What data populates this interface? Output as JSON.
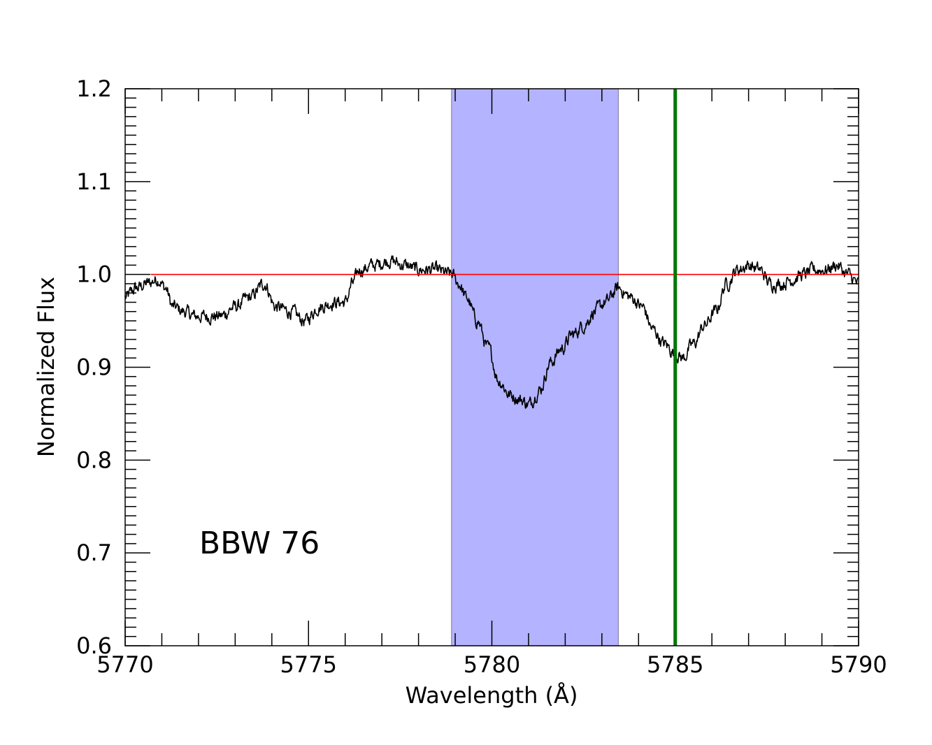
{
  "chart_data": {
    "type": "line",
    "title": "",
    "xlabel": "Wavelength (Å)",
    "ylabel": "Normalized Flux",
    "annotation": "BBW 76",
    "xlim": [
      5770,
      5790
    ],
    "ylim": [
      0.6,
      1.2
    ],
    "x_ticks": [
      5770,
      5775,
      5780,
      5785,
      5790
    ],
    "x_tick_labels": [
      "5770",
      "5775",
      "5780",
      "5785",
      "5790"
    ],
    "y_ticks": [
      0.6,
      0.7,
      0.8,
      0.9,
      1.0,
      1.1,
      1.2
    ],
    "y_tick_labels": [
      "0.6",
      "0.7",
      "0.8",
      "0.9",
      "1.0",
      "1.1",
      "1.2"
    ],
    "grid": false,
    "continuum": {
      "y": 1.0,
      "x_start": 5770.7,
      "x_end": 5790,
      "color": "#ff0000"
    },
    "shaded_region": {
      "x_start": 5778.9,
      "x_end": 5783.45,
      "color": "#b3b3ff"
    },
    "marker_line": {
      "x": 5785.0,
      "color": "#007700"
    },
    "series": [
      {
        "color": "#000000",
        "x": [
          5770.0,
          5770.3,
          5770.6,
          5770.9,
          5771.1,
          5771.3,
          5771.6,
          5771.9,
          5772.2,
          5772.6,
          5773.0,
          5773.4,
          5773.8,
          5774.1,
          5774.5,
          5774.9,
          5775.3,
          5775.7,
          5776.0,
          5776.2,
          5776.4,
          5776.8,
          5777.2,
          5777.6,
          5778.0,
          5778.4,
          5778.9,
          5779.1,
          5779.3,
          5779.6,
          5779.9,
          5780.2,
          5780.5,
          5780.8,
          5781.0,
          5781.3,
          5781.6,
          5781.9,
          5782.2,
          5782.5,
          5782.8,
          5783.1,
          5783.45,
          5783.8,
          5784.1,
          5784.4,
          5784.7,
          5785.0,
          5785.2,
          5785.5,
          5785.8,
          5786.1,
          5786.4,
          5786.7,
          5787.0,
          5787.3,
          5787.6,
          5787.9,
          5788.2,
          5788.5,
          5788.8,
          5789.1,
          5789.4,
          5789.7,
          5790.0
        ],
        "y": [
          0.975,
          0.985,
          0.99,
          0.995,
          0.985,
          0.965,
          0.96,
          0.955,
          0.955,
          0.955,
          0.965,
          0.975,
          0.99,
          0.965,
          0.96,
          0.95,
          0.965,
          0.97,
          0.97,
          0.99,
          1.005,
          1.01,
          1.015,
          1.01,
          1.005,
          1.005,
          1.0,
          0.99,
          0.975,
          0.95,
          0.92,
          0.885,
          0.87,
          0.865,
          0.86,
          0.875,
          0.905,
          0.92,
          0.935,
          0.945,
          0.96,
          0.97,
          0.985,
          0.975,
          0.965,
          0.94,
          0.925,
          0.915,
          0.91,
          0.925,
          0.945,
          0.96,
          0.99,
          1.005,
          1.01,
          1.005,
          0.99,
          0.99,
          0.995,
          1.0,
          1.005,
          1.005,
          1.01,
          1.0,
          0.99
        ]
      }
    ]
  }
}
